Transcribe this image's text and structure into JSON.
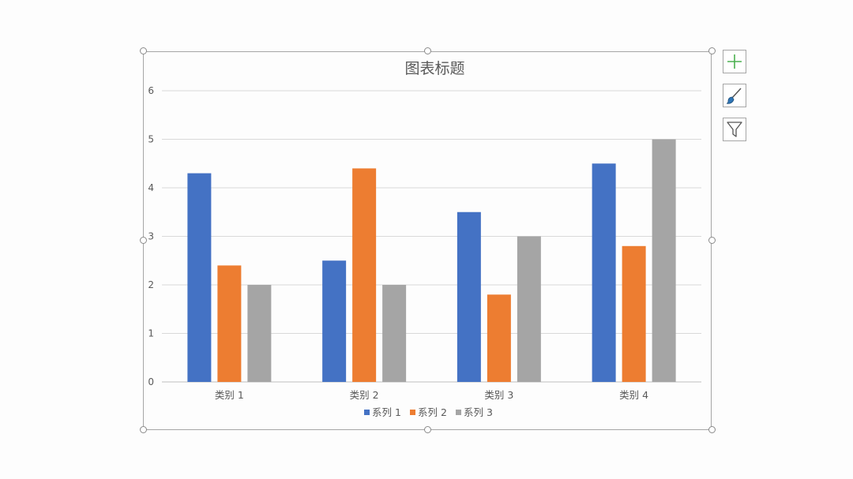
{
  "chart_data": {
    "type": "bar",
    "title": "图表标题",
    "categories": [
      "类别 1",
      "类别 2",
      "类别 3",
      "类别 4"
    ],
    "series": [
      {
        "name": "系列 1",
        "color": "#4472c4",
        "values": [
          4.3,
          2.5,
          3.5,
          4.5
        ]
      },
      {
        "name": "系列 2",
        "color": "#ed7d31",
        "values": [
          2.4,
          4.4,
          1.8,
          2.8
        ]
      },
      {
        "name": "系列 3",
        "color": "#a5a5a5",
        "values": [
          2.0,
          2.0,
          3.0,
          5.0
        ]
      }
    ],
    "ylim": [
      0,
      6
    ],
    "yticks": [
      "0",
      "1",
      "2",
      "3",
      "4",
      "5",
      "6"
    ],
    "grid": true,
    "legend_position": "bottom"
  },
  "side_buttons": {
    "add_element_icon": "plus-icon",
    "style_icon": "brush-icon",
    "filter_icon": "funnel-icon",
    "add_color": "#4cb050",
    "brush_color": "#2e75b6"
  }
}
